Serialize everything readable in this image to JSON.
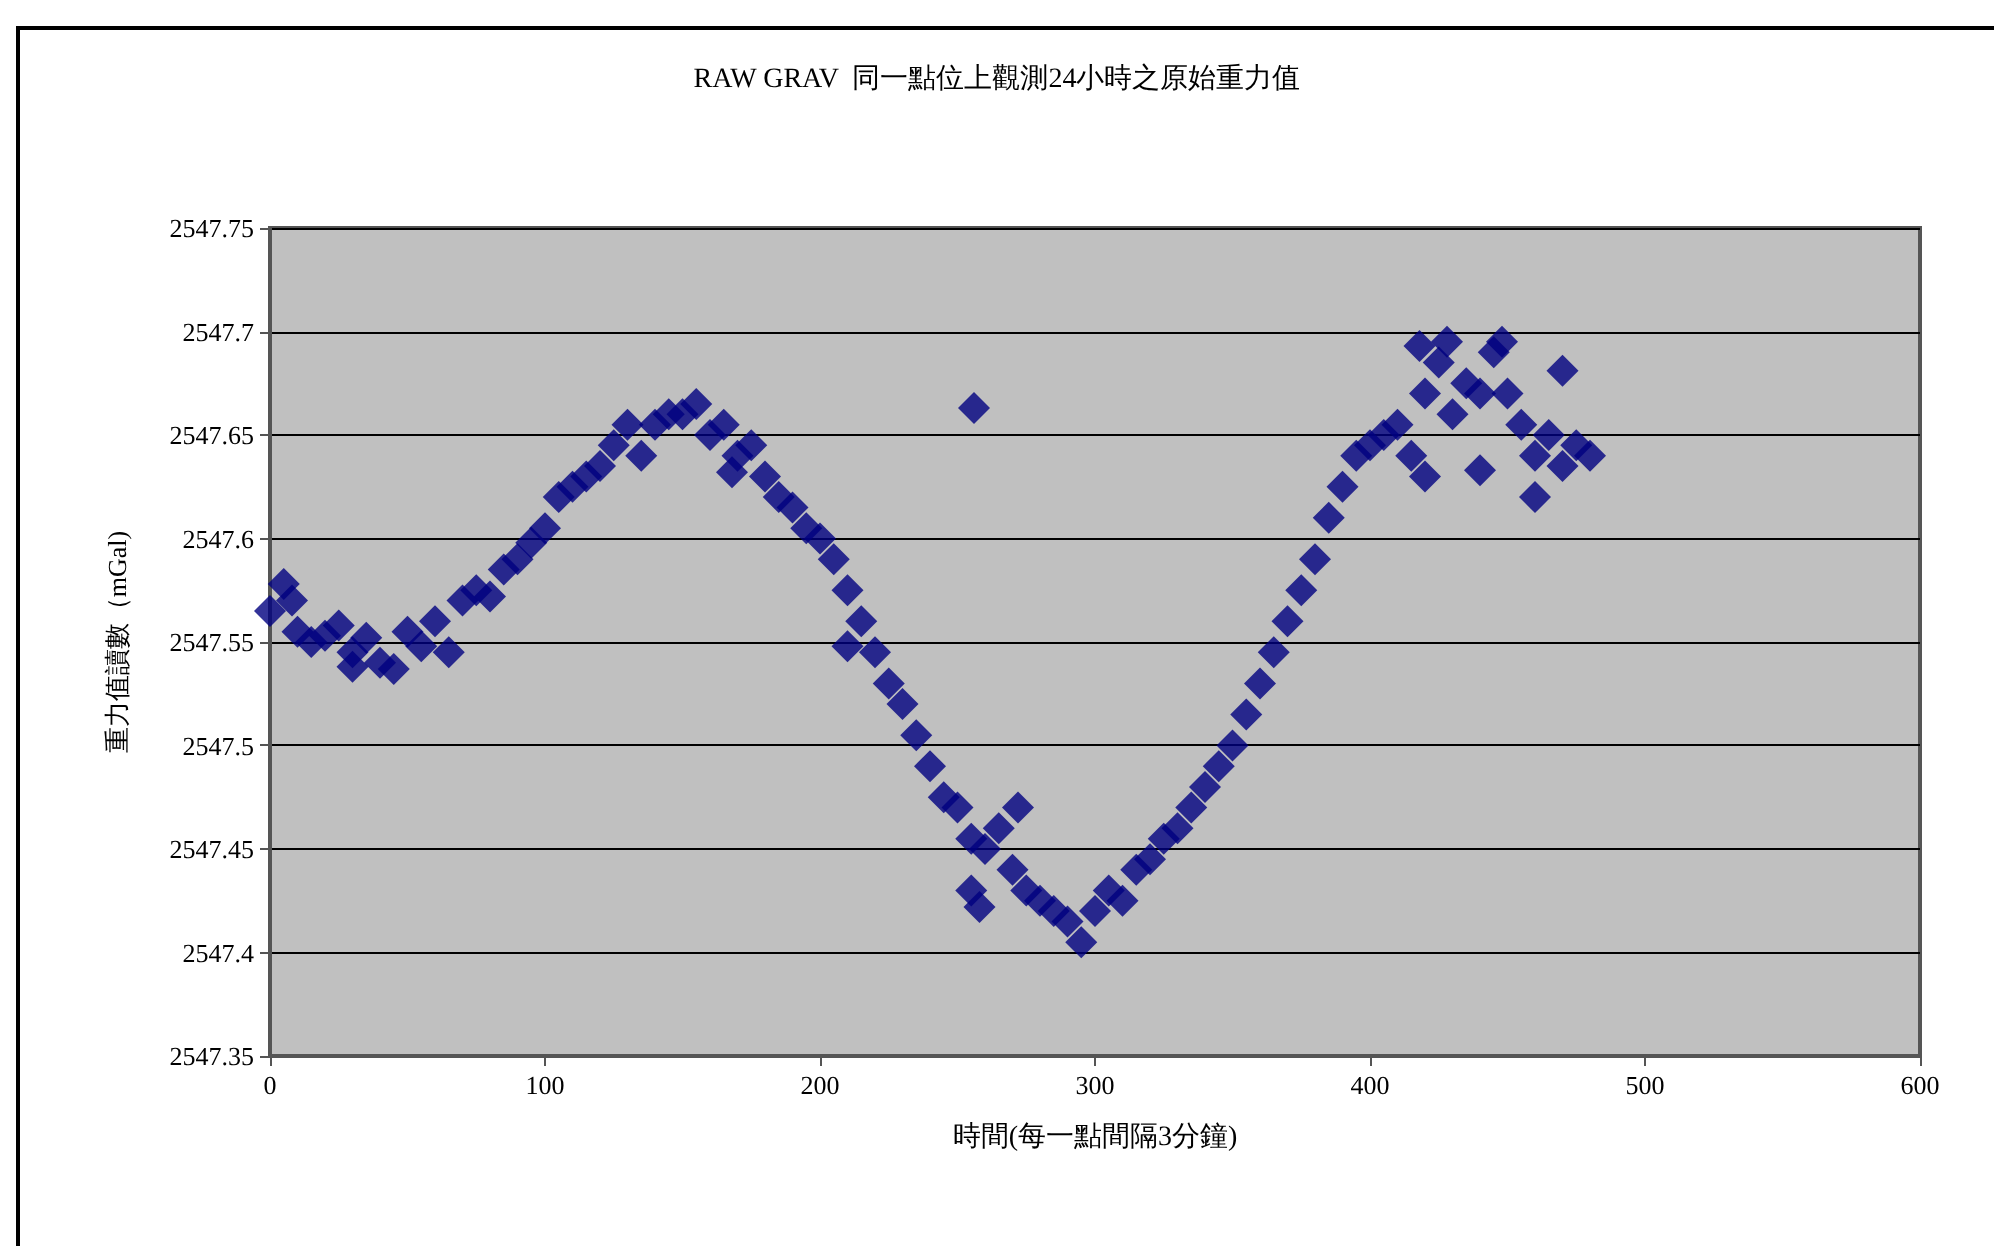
{
  "chart_data": {
    "type": "scatter",
    "title": "RAW GRAV  同一點位上觀測24小時之原始重力值",
    "xlabel": "時間(每一點間隔3分鐘)",
    "ylabel": "重力值讀數（mGal)",
    "x": [
      0,
      5,
      10,
      15,
      20,
      25,
      30,
      35,
      40,
      45,
      50,
      55,
      60,
      65,
      70,
      75,
      80,
      85,
      90,
      95,
      100,
      105,
      110,
      115,
      120,
      125,
      130,
      135,
      140,
      145,
      150,
      155,
      160,
      165,
      170,
      175,
      180,
      185,
      190,
      195,
      200,
      205,
      210,
      215,
      220,
      225,
      230,
      235,
      240,
      245,
      250,
      255,
      260,
      265,
      270,
      275,
      280,
      285,
      290,
      295,
      300,
      305,
      310,
      315,
      320,
      325,
      330,
      335,
      340,
      345,
      350,
      355,
      360,
      365,
      370,
      375,
      380,
      385,
      390,
      395,
      400,
      405,
      410,
      415,
      420,
      425,
      430,
      435,
      440,
      445,
      450,
      455,
      460,
      465,
      470,
      475,
      480,
      256,
      418,
      428,
      448,
      470,
      460,
      258,
      255,
      210,
      420,
      440,
      8,
      30,
      168,
      272
    ],
    "values": [
      2547.565,
      2547.578,
      2547.555,
      2547.55,
      2547.553,
      2547.558,
      2547.545,
      2547.552,
      2547.54,
      2547.537,
      2547.555,
      2547.548,
      2547.56,
      2547.545,
      2547.57,
      2547.575,
      2547.572,
      2547.585,
      2547.59,
      2547.598,
      2547.605,
      2547.62,
      2547.625,
      2547.63,
      2547.635,
      2547.645,
      2547.655,
      2547.64,
      2547.655,
      2547.66,
      2547.66,
      2547.665,
      2547.65,
      2547.655,
      2547.64,
      2547.645,
      2547.63,
      2547.62,
      2547.615,
      2547.605,
      2547.6,
      2547.59,
      2547.575,
      2547.56,
      2547.545,
      2547.53,
      2547.52,
      2547.505,
      2547.49,
      2547.475,
      2547.47,
      2547.455,
      2547.45,
      2547.46,
      2547.44,
      2547.43,
      2547.425,
      2547.42,
      2547.415,
      2547.405,
      2547.42,
      2547.43,
      2547.425,
      2547.44,
      2547.445,
      2547.455,
      2547.46,
      2547.47,
      2547.48,
      2547.49,
      2547.5,
      2547.515,
      2547.53,
      2547.545,
      2547.56,
      2547.575,
      2547.59,
      2547.61,
      2547.625,
      2547.64,
      2547.645,
      2547.65,
      2547.655,
      2547.64,
      2547.67,
      2547.685,
      2547.66,
      2547.675,
      2547.67,
      2547.69,
      2547.67,
      2547.655,
      2547.64,
      2547.65,
      2547.635,
      2547.645,
      2547.64,
      2547.663,
      2547.693,
      2547.695,
      2547.695,
      2547.681,
      2547.62,
      2547.422,
      2547.43,
      2547.548,
      2547.63,
      2547.633,
      2547.57,
      2547.538,
      2547.632,
      2547.47
    ],
    "color": "#000080",
    "marker": "diamond",
    "xlim": [
      0,
      600
    ],
    "xticks": [
      0,
      100,
      200,
      300,
      400,
      500,
      600
    ],
    "ylim": [
      2547.35,
      2547.75
    ],
    "yticks": [
      2547.35,
      2547.4,
      2547.45,
      2547.5,
      2547.55,
      2547.6,
      2547.65,
      2547.7,
      2547.75
    ],
    "grid": "y",
    "legend": false
  }
}
